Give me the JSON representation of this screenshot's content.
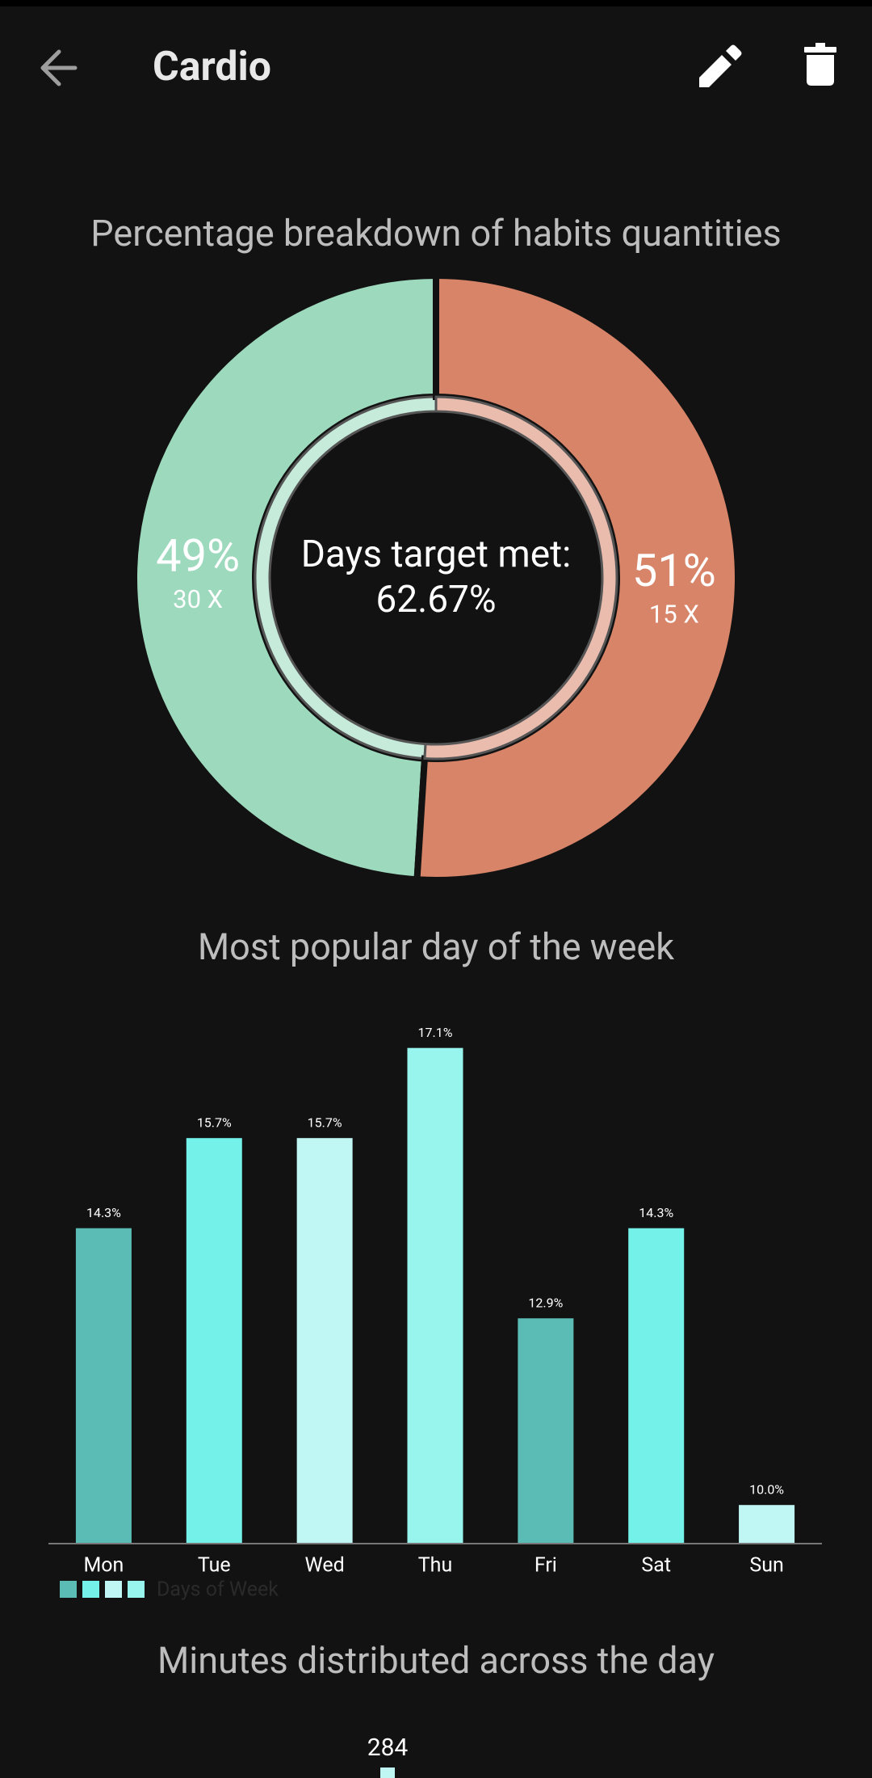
{
  "header": {
    "title": "Cardio"
  },
  "charts": [
    {
      "type": "donut",
      "title": "Percentage breakdown of habits quantities",
      "values": [
        49,
        51
      ],
      "value_labels": [
        "49%",
        "51%"
      ],
      "sublabels": [
        "30 X",
        "15 X"
      ],
      "colors": [
        "#9dd9bd",
        "#d88468"
      ],
      "inner_colors": [
        "#c6ebda",
        "#e9bcae"
      ],
      "center_title": "Days target met:",
      "center_value": "62.67%"
    },
    {
      "type": "bar",
      "title": "Most popular day of the week",
      "categories": [
        "Mon",
        "Tue",
        "Wed",
        "Thu",
        "Fri",
        "Sat",
        "Sun"
      ],
      "values": [
        14.3,
        15.7,
        15.7,
        17.1,
        12.9,
        14.3,
        10.0
      ],
      "value_labels": [
        "14.3%",
        "15.7%",
        "15.7%",
        "17.1%",
        "12.9%",
        "14.3%",
        "10.0%"
      ],
      "colors": [
        "#5abcb5",
        "#74f1e8",
        "#c0f7f4",
        "#98f5ee",
        "#5abcb5",
        "#74f1e8",
        "#c0f7f4"
      ],
      "legend": "Days of Week",
      "ylim": [
        9.4,
        18
      ]
    },
    {
      "type": "bar",
      "title": "Minutes distributed across the day",
      "values": [
        284
      ]
    }
  ]
}
